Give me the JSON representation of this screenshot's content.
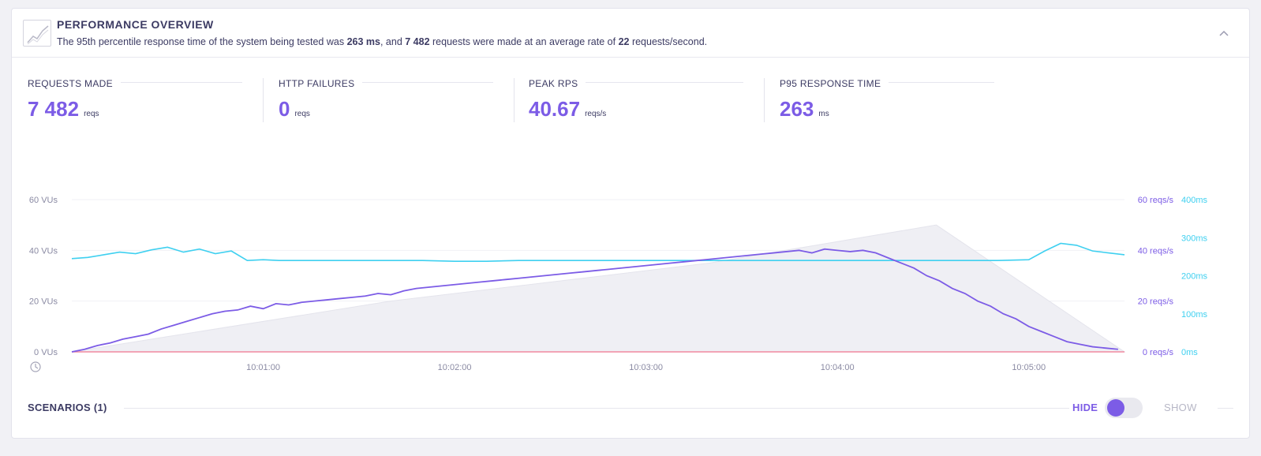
{
  "header": {
    "title": "PERFORMANCE OVERVIEW",
    "summary_prefix": "The 95th percentile response time of the system being tested was ",
    "p95": "263 ms",
    "summary_mid1": ", and ",
    "requests": "7 482",
    "summary_mid2": " requests were made at an average rate of ",
    "avg_rate": "22",
    "summary_suffix": " requests/second."
  },
  "stats": [
    {
      "label": "REQUESTS MADE",
      "value": "7 482",
      "unit": "reqs"
    },
    {
      "label": "HTTP FAILURES",
      "value": "0",
      "unit": "reqs"
    },
    {
      "label": "PEAK RPS",
      "value": "40.67",
      "unit": "reqs/s"
    },
    {
      "label": "P95 RESPONSE TIME",
      "value": "263",
      "unit": "ms"
    }
  ],
  "colors": {
    "accent": "#7c5ce6",
    "response_time": "#3fd0f0",
    "failures": "#f08aa0",
    "vus_fill": "#efeff4"
  },
  "chart_data": {
    "type": "line",
    "x_ticks": [
      "10:01:00",
      "10:02:00",
      "10:03:00",
      "10:04:00",
      "10:05:00"
    ],
    "y_left": {
      "ticks": [
        "0 VUs",
        "20 VUs",
        "40 VUs",
        "60 VUs"
      ],
      "ylim": [
        0,
        60
      ]
    },
    "y_right1": {
      "ticks": [
        "0 reqs/s",
        "20 reqs/s",
        "40 reqs/s",
        "60 reqs/s"
      ],
      "ylim": [
        0,
        60
      ]
    },
    "y_right2": {
      "ticks": [
        "0ms",
        "100ms",
        "200ms",
        "300ms",
        "400ms"
      ],
      "ylim": [
        0,
        400
      ]
    },
    "xlim": [
      0,
      330
    ],
    "series": [
      {
        "axis": "vus",
        "x": [
          0,
          100,
          200,
          271,
          330
        ],
        "values": [
          0,
          20,
          35,
          50,
          0
        ]
      },
      {
        "axis": "reqs",
        "x": [
          0,
          4,
          8,
          12,
          16,
          20,
          24,
          28,
          32,
          36,
          40,
          44,
          48,
          52,
          56,
          60,
          64,
          68,
          72,
          76,
          80,
          84,
          88,
          92,
          96,
          100,
          104,
          108,
          112,
          116,
          120,
          124,
          128,
          132,
          136,
          140,
          144,
          148,
          152,
          156,
          160,
          164,
          168,
          172,
          176,
          180,
          184,
          188,
          192,
          196,
          200,
          204,
          208,
          212,
          216,
          220,
          224,
          228,
          232,
          236,
          240,
          244,
          248,
          252,
          256,
          260,
          264,
          268,
          272,
          276,
          280,
          284,
          288,
          292,
          296,
          300,
          304,
          308,
          312,
          316,
          320,
          324,
          328
        ],
        "values": [
          0,
          1,
          2.5,
          3.5,
          5,
          6,
          7,
          9,
          10.5,
          12,
          13.5,
          15,
          16,
          16.5,
          18,
          17,
          19,
          18.5,
          19.5,
          20,
          20.5,
          21,
          21.5,
          22,
          23,
          22.5,
          24,
          25,
          25.5,
          26,
          26.5,
          27,
          27.5,
          28,
          28.5,
          29,
          29.5,
          30,
          30.5,
          31,
          31.5,
          32,
          32.5,
          33,
          33.5,
          34,
          34.5,
          35,
          35.5,
          36,
          36.5,
          37,
          37.5,
          38,
          38.5,
          39,
          39.5,
          40,
          39,
          40.5,
          40,
          39.5,
          40,
          39,
          37,
          35,
          33,
          30,
          28,
          25,
          23,
          20,
          18,
          15,
          13,
          10,
          8,
          6,
          4,
          3,
          2,
          1.5,
          1
        ],
        "name": ""
      },
      {
        "axis": "ms",
        "x": [
          0,
          5,
          10,
          15,
          20,
          25,
          30,
          35,
          40,
          45,
          50,
          55,
          60,
          65,
          70,
          75,
          80,
          90,
          100,
          110,
          120,
          130,
          140,
          150,
          160,
          170,
          180,
          190,
          200,
          210,
          220,
          230,
          240,
          250,
          260,
          270,
          280,
          290,
          300,
          305,
          310,
          315,
          320,
          325,
          330
        ],
        "values": [
          245,
          248,
          255,
          262,
          258,
          268,
          275,
          262,
          270,
          258,
          265,
          240,
          242,
          240,
          240,
          240,
          240,
          240,
          240,
          240,
          238,
          238,
          240,
          240,
          240,
          240,
          240,
          240,
          240,
          240,
          240,
          240,
          240,
          240,
          240,
          240,
          240,
          240,
          242,
          265,
          285,
          280,
          265,
          260,
          255
        ]
      },
      {
        "axis": "failures",
        "x": [
          0,
          330
        ],
        "values": [
          0,
          0
        ]
      }
    ]
  },
  "scenarios": {
    "title": "SCENARIOS (1)",
    "hide_label": "HIDE",
    "show_label": "SHOW"
  }
}
